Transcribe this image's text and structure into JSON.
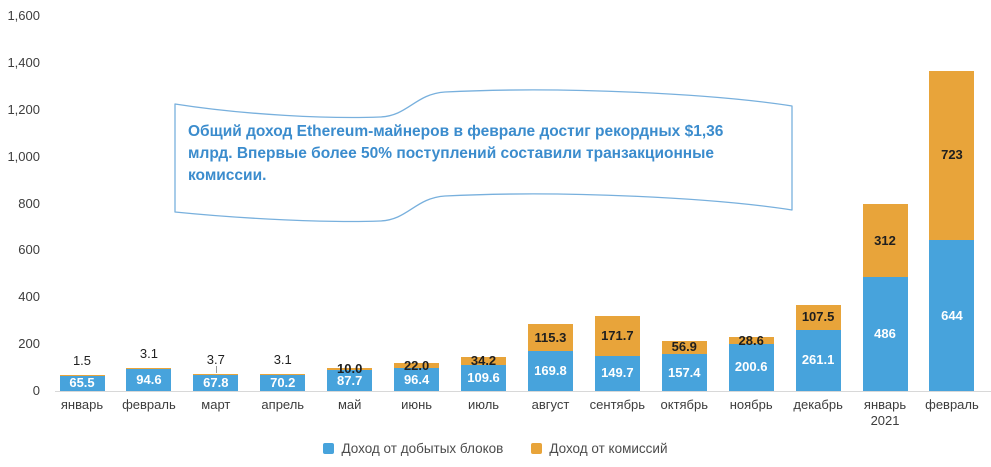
{
  "annotation": {
    "lines": [
      "Общий доход Ethereum-майнеров в феврале достиг рекордных $1,36",
      "млрд. Впервые более 50% поступлений составили транзакционные",
      "комиссии."
    ]
  },
  "colors": {
    "blocks": "#47a3dc",
    "fees": "#e8a43a",
    "baseline": "#d8d8d8",
    "axis_text": "#3d3d3d",
    "annotation_text": "#3b8ccd",
    "callout_border": "#78b0dd"
  },
  "chart_data": {
    "type": "bar",
    "stacked": true,
    "title": "",
    "xlabel": "",
    "ylabel": "",
    "grid": false,
    "legend_position": "bottom",
    "ylim": [
      0,
      1600
    ],
    "y_tick_step": 200,
    "y_tick_labels": [
      "0",
      "200",
      "400",
      "600",
      "800",
      "1,000",
      "1,200",
      "1,400",
      "1,600"
    ],
    "categories": [
      "январь",
      "февраль",
      "март",
      "апрель",
      "май",
      "июнь",
      "июль",
      "август",
      "сентябрь",
      "октябрь",
      "ноябрь",
      "декабрь",
      "январь\n2021",
      "февраль"
    ],
    "series": [
      {
        "name": "Доход от добытых блоков",
        "color": "#47a3dc",
        "values": [
          65.5,
          94.6,
          67.8,
          70.2,
          87.7,
          96.4,
          109.6,
          169.8,
          149.7,
          157.4,
          200.6,
          261.1,
          486,
          644
        ]
      },
      {
        "name": "Доход от комиссий",
        "color": "#e8a43a",
        "values": [
          1.5,
          3.1,
          3.7,
          3.1,
          10.0,
          22.0,
          34.2,
          115.3,
          171.7,
          56.9,
          28.6,
          107.5,
          312,
          723
        ]
      }
    ]
  }
}
